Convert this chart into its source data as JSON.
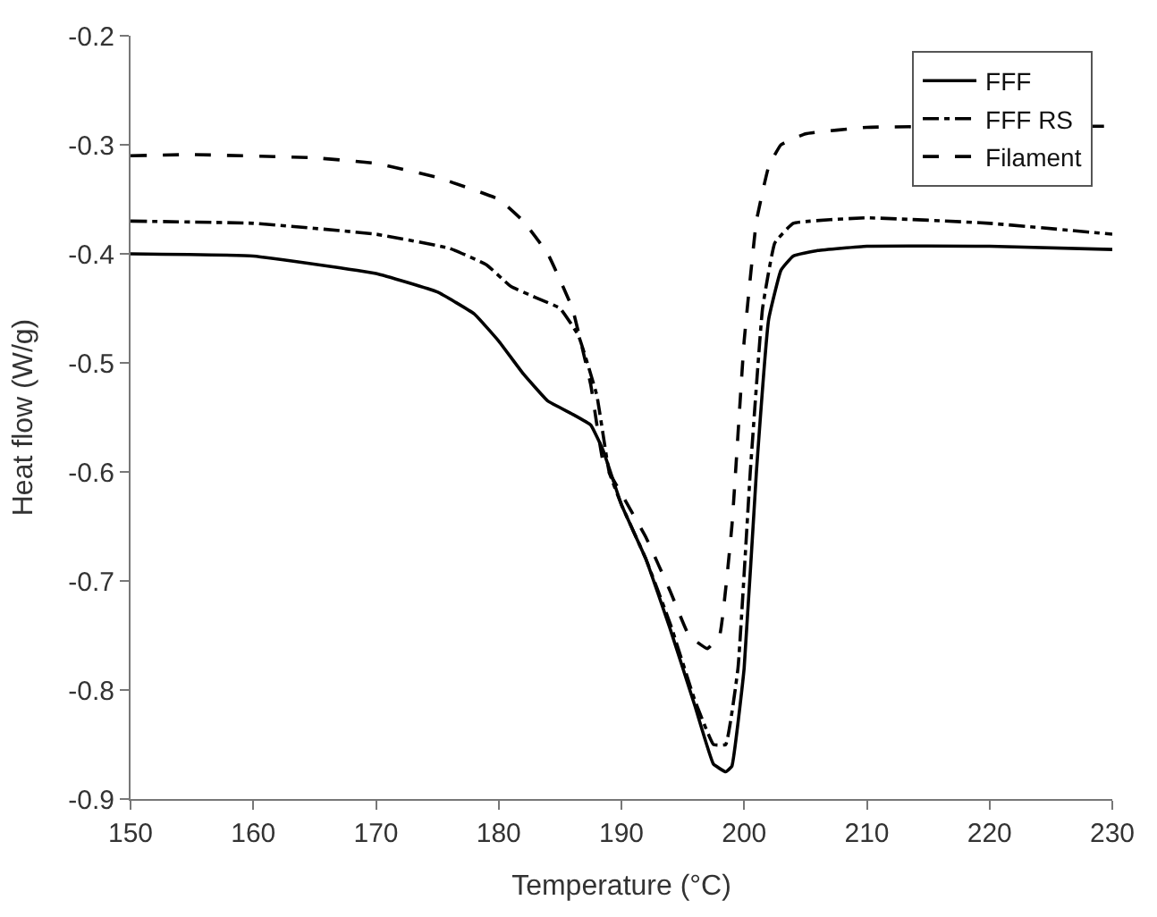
{
  "chart_data": {
    "type": "line",
    "xlabel": "Temperature (°C)",
    "ylabel": "Heat flow (W/g)",
    "xlim": [
      150,
      230
    ],
    "xticks": [
      150,
      160,
      170,
      180,
      190,
      200,
      210,
      220,
      230
    ],
    "ylim": [
      -0.9,
      -0.2
    ],
    "yticks": [
      -0.9,
      -0.8,
      -0.7,
      -0.6,
      -0.5,
      -0.4,
      -0.3,
      -0.2
    ],
    "legend": "top right",
    "marker": "none",
    "series": [
      {
        "name": "FFF",
        "color": "#000000",
        "line_style": "solid",
        "x": [
          150,
          160,
          170,
          175,
          178,
          180,
          182,
          184,
          186,
          187.5,
          188.5,
          190,
          192,
          194,
          196,
          197.5,
          198.5,
          199,
          200,
          201,
          202,
          203,
          204,
          206,
          210,
          220,
          230
        ],
        "values": [
          -0.4,
          -0.402,
          -0.418,
          -0.435,
          -0.455,
          -0.48,
          -0.51,
          -0.535,
          -0.547,
          -0.557,
          -0.58,
          -0.63,
          -0.68,
          -0.745,
          -0.815,
          -0.868,
          -0.875,
          -0.87,
          -0.78,
          -0.6,
          -0.46,
          -0.415,
          -0.402,
          -0.397,
          -0.393,
          -0.393,
          -0.396
        ]
      },
      {
        "name": "FFF RS",
        "color": "#000000",
        "line_style": "dashdot",
        "x": [
          150,
          160,
          170,
          176,
          179,
          181,
          183,
          185,
          186.5,
          188,
          189,
          190,
          192,
          194,
          196,
          197.5,
          198.5,
          199.5,
          200.5,
          201.5,
          202.5,
          204,
          210,
          220,
          230
        ],
        "values": [
          -0.37,
          -0.372,
          -0.382,
          -0.395,
          -0.41,
          -0.43,
          -0.44,
          -0.45,
          -0.475,
          -0.53,
          -0.6,
          -0.63,
          -0.68,
          -0.74,
          -0.81,
          -0.85,
          -0.85,
          -0.78,
          -0.6,
          -0.45,
          -0.39,
          -0.372,
          -0.367,
          -0.372,
          -0.382
        ]
      },
      {
        "name": "Filament",
        "color": "#000000",
        "line_style": "dashed",
        "x": [
          150,
          155,
          165,
          170,
          175,
          180,
          182,
          184,
          186,
          187.5,
          188.5,
          190,
          192,
          194,
          195.5,
          197,
          198,
          199,
          200,
          201,
          202,
          203,
          205,
          210,
          230
        ],
        "values": [
          -0.31,
          -0.309,
          -0.312,
          -0.317,
          -0.33,
          -0.35,
          -0.37,
          -0.4,
          -0.45,
          -0.52,
          -0.59,
          -0.62,
          -0.66,
          -0.71,
          -0.75,
          -0.762,
          -0.75,
          -0.65,
          -0.48,
          -0.37,
          -0.32,
          -0.3,
          -0.29,
          -0.284,
          -0.283
        ]
      }
    ]
  }
}
